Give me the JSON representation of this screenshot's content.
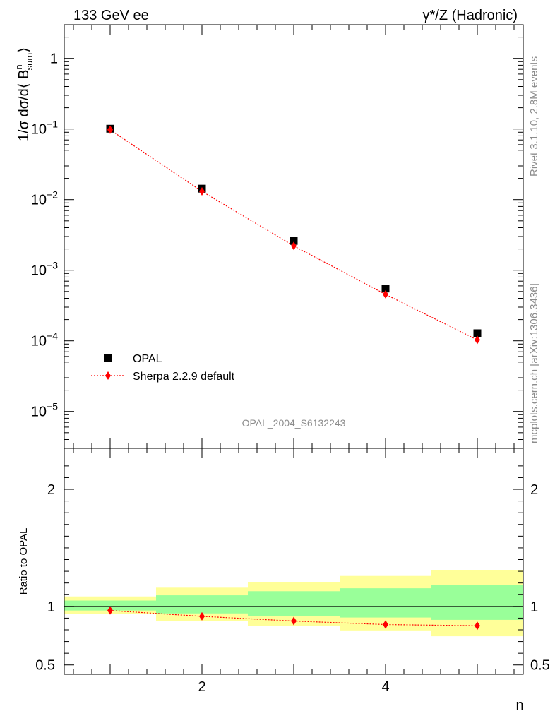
{
  "header": {
    "left": "133 GeV ee",
    "right": "γ*/Z (Hadronic)"
  },
  "side_labels": {
    "rivet": "Rivet 3.1.10,  2.8M events",
    "mcplots": "mcplots.cern.ch [arXiv:1306.3436]"
  },
  "watermark": "OPAL_2004_S6132243",
  "chart_data": [
    {
      "type": "scatter",
      "panel": "main",
      "yscale": "log",
      "ylabel_parts": {
        "pre": "1/σ dσ/d⟨ B",
        "sup": "n",
        "sub": "sum",
        "post": "⟩"
      },
      "xlabel": "n",
      "xlim": [
        0.5,
        5.5
      ],
      "ylim": [
        3e-06,
        3
      ],
      "y_ticks": [
        {
          "value": 1,
          "label": "1"
        },
        {
          "value": 0.1,
          "base": "10",
          "exp": "−1"
        },
        {
          "value": 0.01,
          "base": "10",
          "exp": "−2"
        },
        {
          "value": 0.001,
          "base": "10",
          "exp": "−3"
        },
        {
          "value": 0.0001,
          "base": "10",
          "exp": "−4"
        },
        {
          "value": 1e-05,
          "base": "10",
          "exp": "−5"
        }
      ],
      "legend": {
        "position": "bottom-left"
      },
      "series": [
        {
          "name": "OPAL",
          "color": "#000000",
          "marker": "square",
          "x": [
            1,
            2,
            3,
            4,
            5
          ],
          "y": [
            0.101,
            0.0143,
            0.0026,
            0.00055,
            0.000128
          ]
        },
        {
          "name": "Sherpa 2.2.9 default",
          "color": "#ff0000",
          "marker": "diamond",
          "line": "dotted",
          "x": [
            1,
            2,
            3,
            4,
            5
          ],
          "y": [
            0.0975,
            0.0131,
            0.00221,
            0.000455,
            0.000103
          ]
        }
      ]
    },
    {
      "type": "line",
      "panel": "ratio",
      "ylabel": "Ratio to OPAL",
      "xlabel": "n",
      "xlim": [
        0.5,
        5.5
      ],
      "ylim": [
        0.42,
        2.35
      ],
      "x_ticks": [
        {
          "value": 2,
          "label": "2"
        },
        {
          "value": 4,
          "label": "4"
        }
      ],
      "y_ticks": [
        {
          "value": 0.5,
          "label": "0.5"
        },
        {
          "value": 1,
          "label": "1"
        },
        {
          "value": 2,
          "label": "2"
        }
      ],
      "bins": [
        {
          "x0": 0.5,
          "x1": 1.5,
          "green": [
            0.965,
            1.05
          ],
          "yellow": [
            0.935,
            1.085
          ]
        },
        {
          "x0": 1.5,
          "x1": 2.5,
          "green": [
            0.94,
            1.095
          ],
          "yellow": [
            0.875,
            1.16
          ]
        },
        {
          "x0": 2.5,
          "x1": 3.5,
          "green": [
            0.92,
            1.13
          ],
          "yellow": [
            0.835,
            1.21
          ]
        },
        {
          "x0": 3.5,
          "x1": 4.5,
          "green": [
            0.905,
            1.155
          ],
          "yellow": [
            0.795,
            1.26
          ]
        },
        {
          "x0": 4.5,
          "x1": 5.5,
          "green": [
            0.885,
            1.18
          ],
          "yellow": [
            0.745,
            1.31
          ]
        }
      ],
      "series": [
        {
          "name": "Sherpa 2.2.9 default",
          "color": "#ff0000",
          "marker": "diamond",
          "line": "dotted",
          "x": [
            1,
            2,
            3,
            4,
            5
          ],
          "y": [
            0.965,
            0.915,
            0.875,
            0.845,
            0.835
          ]
        }
      ],
      "reference_line": 1
    }
  ],
  "colors": {
    "band_green": "#99ff99",
    "band_yellow": "#ffff99",
    "mc": "#ff0000",
    "data": "#000000"
  }
}
